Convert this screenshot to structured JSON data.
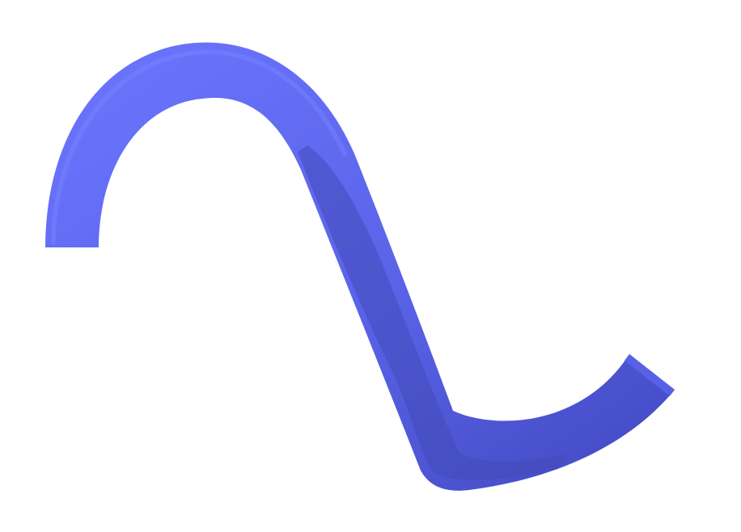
{
  "scene": {
    "object": "tube",
    "colors": {
      "background": "#ffffff",
      "tube_light": "#6670ff",
      "tube_mid": "#5a63e8",
      "tube_dark": "#3c43b0",
      "tube_shadow": "#3a40a6"
    }
  }
}
